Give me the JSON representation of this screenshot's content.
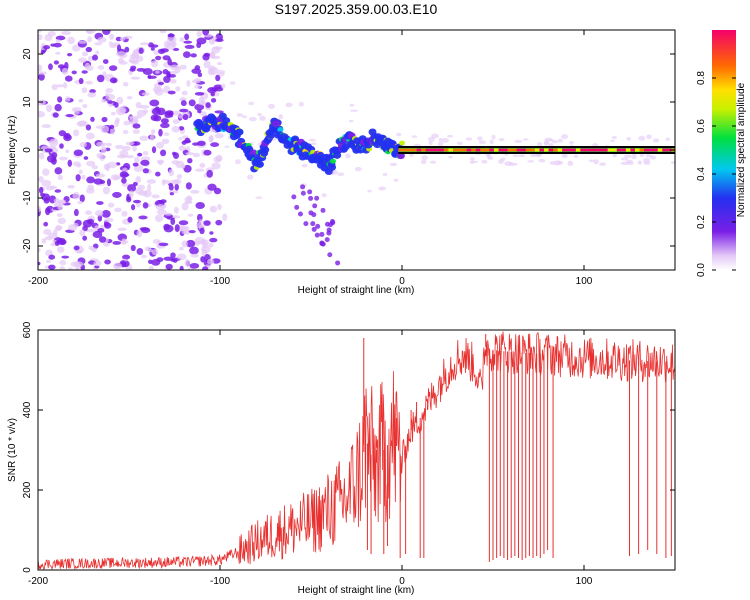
{
  "title": "S197.2025.359.00.03.E10",
  "chart_data": [
    {
      "type": "heatmap",
      "name": "spectrogram",
      "xlabel": "Height of straight line (km)",
      "ylabel": "Frequency (Hz)",
      "xlim": [
        -200,
        150
      ],
      "ylim": [
        -25,
        25
      ],
      "xticks": [
        -200,
        -100,
        0,
        100
      ],
      "yticks": [
        -20,
        -10,
        0,
        10,
        20
      ],
      "colorbar": {
        "label": "Normalized spectral amplitude",
        "range": [
          0,
          1
        ],
        "ticks": [
          "0.0",
          "0.2",
          "0.4",
          "0.6",
          "0.8"
        ],
        "colormap": "rainbow"
      },
      "ridge": {
        "x": [
          -110,
          -100,
          -95,
          -90,
          -85,
          -80,
          -75,
          -70,
          -65,
          -60,
          -55,
          -50,
          -45,
          -40,
          -35,
          -30,
          -25,
          -20,
          -15,
          -10,
          -5,
          0,
          150
        ],
        "y": [
          5,
          6,
          5,
          3,
          0,
          -3,
          1,
          5,
          3,
          1,
          0,
          -1,
          -2,
          -3,
          0,
          2,
          1,
          1,
          3,
          1,
          0,
          0,
          0
        ]
      },
      "straight_line_y": 0
    },
    {
      "type": "line",
      "name": "snr",
      "xlabel": "Height of straight line (km)",
      "ylabel": "SNR (10 * v/v)",
      "xlim": [
        -200,
        150
      ],
      "ylim": [
        0,
        600
      ],
      "xticks": [
        -200,
        -100,
        0,
        100
      ],
      "yticks": [
        0,
        200,
        400,
        600
      ],
      "color": "#e8302f",
      "envelope": {
        "x": [
          -200,
          -150,
          -120,
          -100,
          -90,
          -80,
          -70,
          -60,
          -50,
          -40,
          -30,
          -22,
          -20,
          -15,
          -10,
          -5,
          0,
          5,
          10,
          15,
          20,
          25,
          30,
          35,
          40,
          44,
          45,
          50,
          60,
          80,
          100,
          120,
          150
        ],
        "y": [
          15,
          18,
          20,
          25,
          45,
          70,
          90,
          105,
          120,
          150,
          180,
          260,
          330,
          260,
          300,
          330,
          280,
          350,
          380,
          420,
          460,
          500,
          530,
          535,
          510,
          440,
          560,
          550,
          545,
          540,
          530,
          525,
          520
        ]
      },
      "spikes": {
        "x": [
          -21,
          -19,
          -17,
          -14,
          -12,
          -10,
          -8,
          -6,
          -3,
          -1,
          2,
          5,
          8,
          10,
          12,
          14,
          46,
          48,
          50,
          52,
          54,
          56,
          58,
          60,
          62,
          64,
          66,
          68,
          70,
          72,
          74,
          76,
          78,
          80,
          83,
          125,
          130,
          135,
          140,
          145,
          148
        ],
        "y": [
          580,
          50,
          40,
          300,
          320,
          40,
          60,
          310,
          380,
          30,
          40,
          400,
          420,
          30,
          30,
          400,
          590,
          20,
          25,
          30,
          35,
          30,
          25,
          30,
          35,
          30,
          25,
          30,
          35,
          30,
          35,
          30,
          40,
          50,
          30,
          35,
          40,
          50,
          40,
          30,
          35
        ]
      },
      "noise_amplitude": 12
    }
  ]
}
